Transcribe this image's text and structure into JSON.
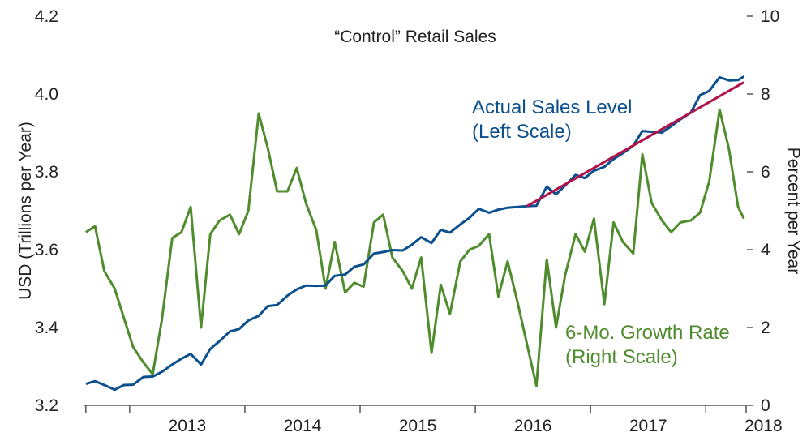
{
  "chart_data": {
    "type": "line",
    "title": "“Control” Retail Sales",
    "ylabel_left": "USD (Trillions per Year)",
    "ylabel_right": "Percent per Year",
    "ylim_left": [
      3.2,
      4.2
    ],
    "ylim_right": [
      0,
      10
    ],
    "yticks_left": [
      "3.2",
      "3.4",
      "3.6",
      "3.8",
      "4.0",
      "4.2"
    ],
    "yticks_right": [
      "0",
      "2",
      "4",
      "6",
      "8",
      "10"
    ],
    "xlim": [
      2012.6,
      2018.35
    ],
    "xtick_labels": [
      "2013",
      "2014",
      "2015",
      "2016",
      "2017",
      "2018"
    ],
    "grid": false,
    "colors": {
      "sales": "#0b4f8c",
      "growth": "#4f8c2d",
      "trend": "#b0134a"
    },
    "annotations": {
      "sales": [
        "Actual Sales Level",
        "(Left Scale)"
      ],
      "growth": [
        "6-Mo. Growth Rate",
        "(Right Scale)"
      ]
    },
    "series": [
      {
        "name": "Actual Sales Level (Left Scale)",
        "axis": "left",
        "x": [
          2012.62,
          2012.7,
          2012.78,
          2012.87,
          2012.95,
          2013.03,
          2013.12,
          2013.2,
          2013.28,
          2013.37,
          2013.45,
          2013.53,
          2013.62,
          2013.7,
          2013.78,
          2013.87,
          2013.95,
          2014.03,
          2014.12,
          2014.2,
          2014.28,
          2014.37,
          2014.45,
          2014.53,
          2014.62,
          2014.7,
          2014.78,
          2014.87,
          2014.95,
          2015.03,
          2015.12,
          2015.2,
          2015.28,
          2015.37,
          2015.45,
          2015.53,
          2015.62,
          2015.7,
          2015.78,
          2015.87,
          2015.95,
          2016.03,
          2016.12,
          2016.2,
          2016.28,
          2016.37,
          2016.45,
          2016.53,
          2016.62,
          2016.7,
          2016.78,
          2016.87,
          2016.95,
          2017.03,
          2017.12,
          2017.2,
          2017.28,
          2017.37,
          2017.45,
          2017.53,
          2017.62,
          2017.7,
          2017.78,
          2017.87,
          2017.95,
          2018.03,
          2018.12,
          2018.2,
          2018.28,
          2018.33
        ],
        "values": [
          3.255,
          3.262,
          3.252,
          3.24,
          3.252,
          3.253,
          3.273,
          3.274,
          3.286,
          3.305,
          3.32,
          3.332,
          3.305,
          3.345,
          3.365,
          3.39,
          3.396,
          3.418,
          3.43,
          3.455,
          3.458,
          3.482,
          3.498,
          3.508,
          3.507,
          3.508,
          3.533,
          3.536,
          3.556,
          3.562,
          3.59,
          3.594,
          3.599,
          3.598,
          3.613,
          3.632,
          3.617,
          3.651,
          3.644,
          3.665,
          3.682,
          3.705,
          3.695,
          3.703,
          3.708,
          3.71,
          3.712,
          3.713,
          3.762,
          3.742,
          3.765,
          3.792,
          3.784,
          3.803,
          3.813,
          3.833,
          3.848,
          3.867,
          3.905,
          3.903,
          3.901,
          3.917,
          3.935,
          3.952,
          3.997,
          4.008,
          4.043,
          4.035,
          4.036,
          4.045
        ]
      },
      {
        "name": "6-Mo. Growth Rate (Right Scale)",
        "axis": "right",
        "x": [
          2012.62,
          2012.7,
          2012.78,
          2012.87,
          2012.95,
          2013.03,
          2013.12,
          2013.2,
          2013.28,
          2013.37,
          2013.45,
          2013.53,
          2013.62,
          2013.7,
          2013.78,
          2013.87,
          2013.95,
          2014.03,
          2014.12,
          2014.2,
          2014.28,
          2014.37,
          2014.45,
          2014.53,
          2014.62,
          2014.7,
          2014.78,
          2014.87,
          2014.95,
          2015.03,
          2015.12,
          2015.2,
          2015.28,
          2015.37,
          2015.45,
          2015.53,
          2015.62,
          2015.7,
          2015.78,
          2015.87,
          2015.95,
          2016.03,
          2016.12,
          2016.2,
          2016.28,
          2016.37,
          2016.45,
          2016.53,
          2016.62,
          2016.7,
          2016.78,
          2016.87,
          2016.95,
          2017.03,
          2017.12,
          2017.2,
          2017.28,
          2017.37,
          2017.45,
          2017.53,
          2017.62,
          2017.7,
          2017.78,
          2017.87,
          2017.95,
          2018.03,
          2018.12,
          2018.2,
          2018.28,
          2018.33
        ],
        "values": [
          4.45,
          4.6,
          3.45,
          3.0,
          2.25,
          1.5,
          1.1,
          0.8,
          2.2,
          4.3,
          4.45,
          5.1,
          2.0,
          4.4,
          4.75,
          4.9,
          4.4,
          5.0,
          7.5,
          6.6,
          5.5,
          5.5,
          6.1,
          5.2,
          4.5,
          3.0,
          4.2,
          2.9,
          3.15,
          3.05,
          4.7,
          4.9,
          3.8,
          3.45,
          3.0,
          3.8,
          1.35,
          3.1,
          2.35,
          3.7,
          4.0,
          4.1,
          4.4,
          2.8,
          3.7,
          2.6,
          1.55,
          0.5,
          3.75,
          2.0,
          3.35,
          4.4,
          3.95,
          4.8,
          2.6,
          4.7,
          4.2,
          3.9,
          6.45,
          5.2,
          4.75,
          4.45,
          4.7,
          4.75,
          4.95,
          5.75,
          7.6,
          6.6,
          5.1,
          4.8
        ]
      },
      {
        "name": "trend",
        "axis": "left",
        "x": [
          2016.45,
          2018.33
        ],
        "values": [
          3.712,
          4.03
        ]
      }
    ]
  }
}
